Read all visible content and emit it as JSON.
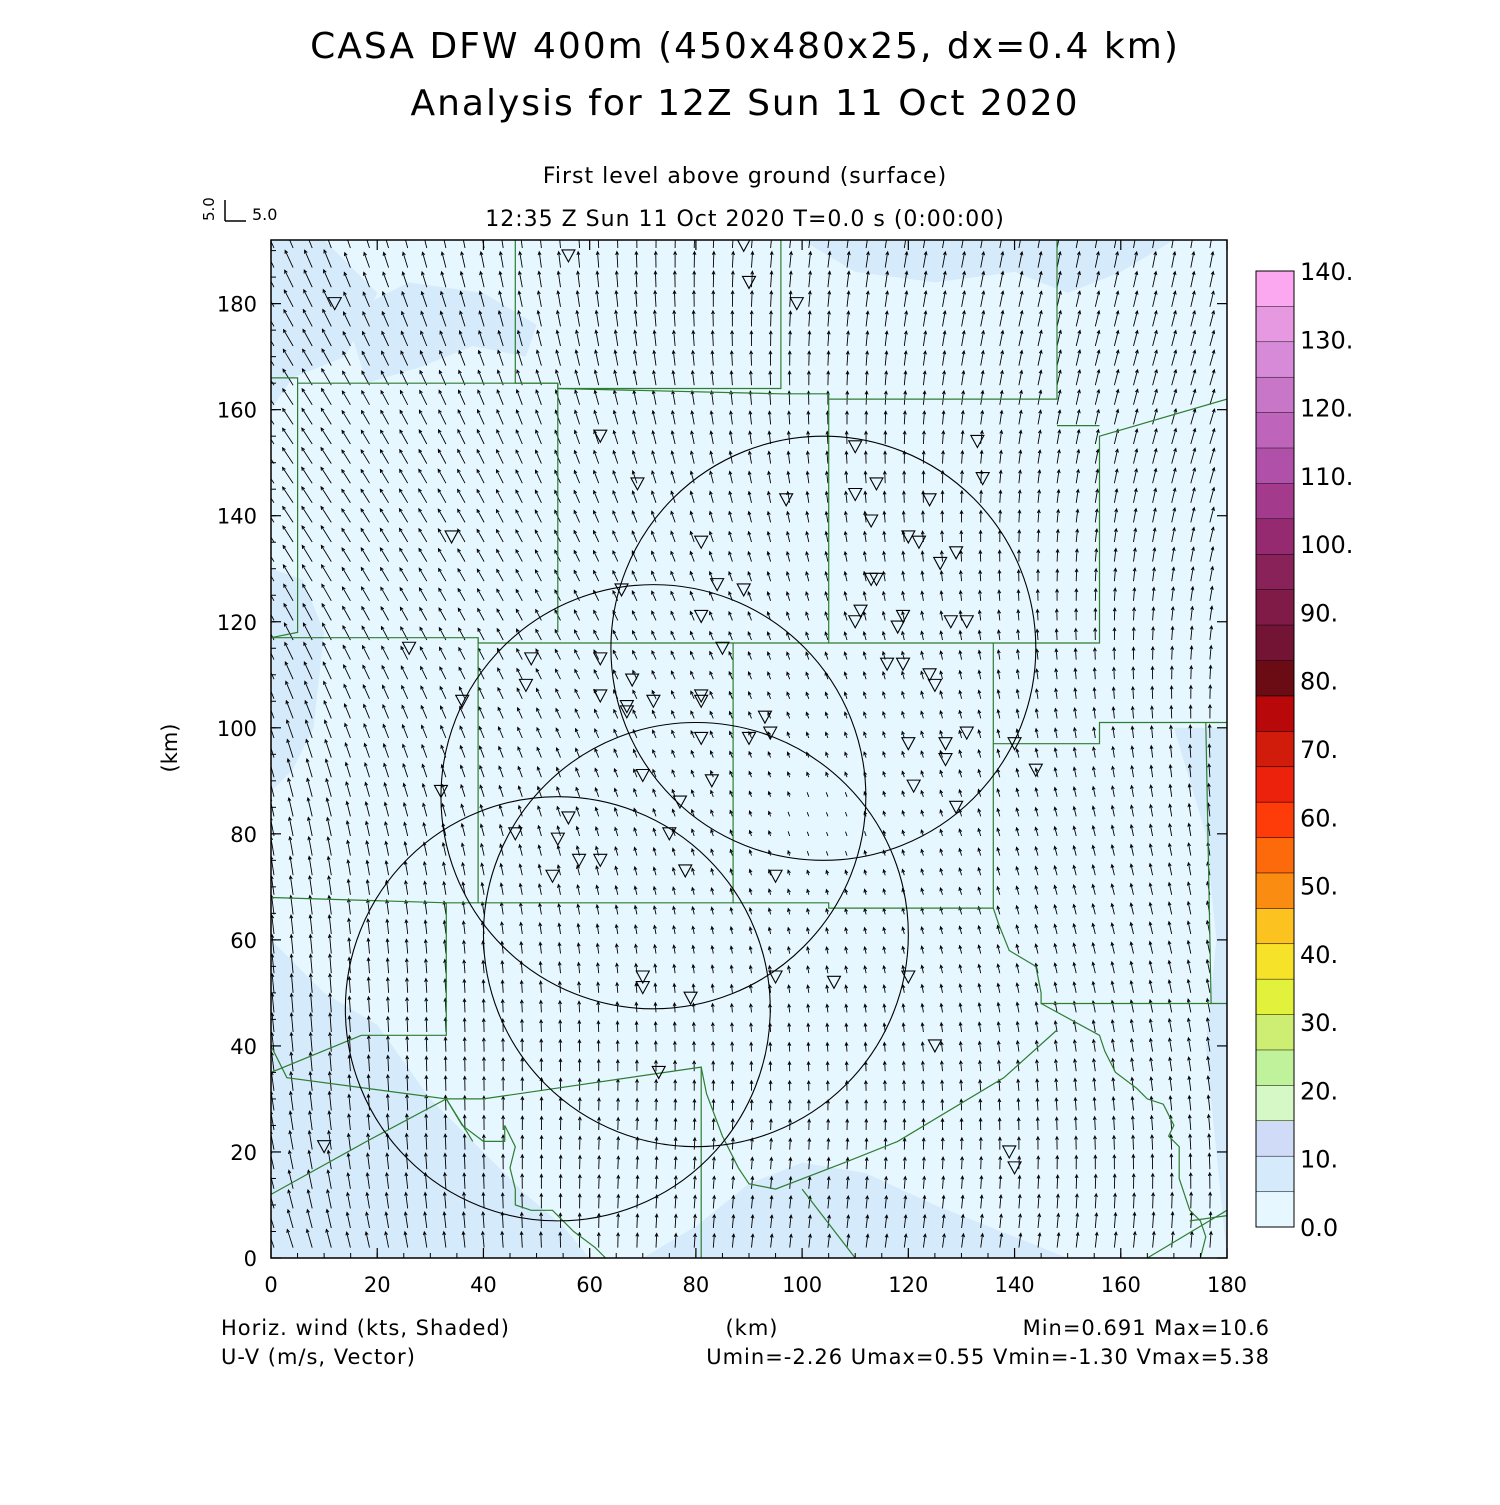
{
  "header": {
    "title_line1": "CASA DFW 400m (450x480x25, dx=0.4 km)",
    "title_line2": "Analysis for 12Z Sun 11 Oct 2020",
    "level_label": "First level above ground (surface)",
    "time_label": "12:35 Z Sun 11 Oct 2020   T=0.0 s (0:00:00)"
  },
  "vector_key": {
    "u_label": "5.0",
    "v_label": "5.0"
  },
  "axes": {
    "x_ticks": [
      "0",
      "20",
      "40",
      "60",
      "80",
      "100",
      "120",
      "140",
      "160",
      "180"
    ],
    "y_ticks": [
      "0",
      "20",
      "40",
      "60",
      "80",
      "100",
      "120",
      "140",
      "160",
      "180"
    ],
    "x_label": "(km)",
    "y_label": "(km)",
    "xlim": [
      0,
      180
    ],
    "ylim": [
      0,
      192
    ]
  },
  "colorbar": {
    "labels": [
      "0.0",
      "10.",
      "20.",
      "30.",
      "40.",
      "50.",
      "60.",
      "70.",
      "80.",
      "90.",
      "100.",
      "110.",
      "120.",
      "130.",
      "140."
    ],
    "colors": [
      "#e6f7ff",
      "#d5eafb",
      "#d0dcf7",
      "#d6f7c6",
      "#c0f29c",
      "#cdee72",
      "#e2f23c",
      "#f7e22a",
      "#fcc220",
      "#fb8c12",
      "#fd6a0c",
      "#fd3c0a",
      "#ec220c",
      "#d11c0c",
      "#b8080a",
      "#6b0c14",
      "#741434",
      "#801a46",
      "#8a225a",
      "#962a70",
      "#a43a8c",
      "#b050a8",
      "#be64ba",
      "#c876c8",
      "#d68ad8",
      "#e698e0",
      "#fca8f0"
    ]
  },
  "footer": {
    "left1": "Horiz. wind (kts, Shaded)",
    "left2": "U-V (m/s, Vector)",
    "center": "(km)",
    "right1": "Min=0.691 Max=10.6",
    "right2": "Umin=-2.26 Umax=0.55 Vmin=-1.30 Vmax=5.38"
  },
  "map_data": {
    "field_min": 0.691,
    "field_max": 10.6,
    "radar_rings": [
      {
        "cx_km": 54,
        "cy_km": 47,
        "r_km": 40
      },
      {
        "cx_km": 80,
        "cy_km": 61,
        "r_km": 40
      },
      {
        "cx_km": 72,
        "cy_km": 87,
        "r_km": 40
      },
      {
        "cx_km": 104,
        "cy_km": 115,
        "r_km": 40
      }
    ],
    "stations_km": [
      [
        56,
        189
      ],
      [
        89,
        191
      ],
      [
        90,
        184
      ],
      [
        12,
        180
      ],
      [
        99,
        180
      ],
      [
        62,
        155
      ],
      [
        69,
        146
      ],
      [
        34,
        136
      ],
      [
        110,
        153
      ],
      [
        133,
        154
      ],
      [
        134,
        147
      ],
      [
        114,
        146
      ],
      [
        110,
        144
      ],
      [
        124,
        143
      ],
      [
        97,
        143
      ],
      [
        113,
        139
      ],
      [
        120,
        136
      ],
      [
        122,
        135
      ],
      [
        81,
        135
      ],
      [
        129,
        133
      ],
      [
        126,
        131
      ],
      [
        113,
        128
      ],
      [
        114,
        128
      ],
      [
        66,
        126
      ],
      [
        84,
        127
      ],
      [
        89,
        126
      ],
      [
        81,
        121
      ],
      [
        111,
        122
      ],
      [
        110,
        120
      ],
      [
        119,
        121
      ],
      [
        118,
        119
      ],
      [
        128,
        120
      ],
      [
        131,
        120
      ],
      [
        26,
        115
      ],
      [
        85,
        115
      ],
      [
        62,
        113
      ],
      [
        49,
        113
      ],
      [
        116,
        112
      ],
      [
        119,
        112
      ],
      [
        124,
        110
      ],
      [
        48,
        108
      ],
      [
        68,
        109
      ],
      [
        125,
        108
      ],
      [
        62,
        106
      ],
      [
        36,
        105
      ],
      [
        72,
        105
      ],
      [
        81,
        106
      ],
      [
        81,
        105
      ],
      [
        67,
        104
      ],
      [
        67,
        103
      ],
      [
        93,
        102
      ],
      [
        94,
        99
      ],
      [
        90,
        98
      ],
      [
        81,
        98
      ],
      [
        120,
        97
      ],
      [
        127,
        97
      ],
      [
        131,
        99
      ],
      [
        140,
        97
      ],
      [
        127,
        94
      ],
      [
        144,
        92
      ],
      [
        32,
        88
      ],
      [
        70,
        91
      ],
      [
        83,
        90
      ],
      [
        121,
        89
      ],
      [
        77,
        86
      ],
      [
        129,
        85
      ],
      [
        46,
        80
      ],
      [
        56,
        83
      ],
      [
        75,
        80
      ],
      [
        54,
        79
      ],
      [
        58,
        75
      ],
      [
        62,
        75
      ],
      [
        78,
        73
      ],
      [
        53,
        72
      ],
      [
        95,
        72
      ],
      [
        70,
        53
      ],
      [
        70,
        51
      ],
      [
        95,
        53
      ],
      [
        106,
        52
      ],
      [
        120,
        53
      ],
      [
        79,
        49
      ],
      [
        125,
        40
      ],
      [
        73,
        35
      ],
      [
        10,
        21
      ],
      [
        139,
        20
      ],
      [
        140,
        17
      ]
    ],
    "county_lines_km": [
      [
        [
          0,
          166
        ],
        [
          5,
          166
        ],
        [
          5,
          118
        ],
        [
          0,
          117
        ]
      ],
      [
        [
          46,
          192
        ],
        [
          46,
          165
        ],
        [
          54,
          165
        ],
        [
          54,
          118
        ]
      ],
      [
        [
          5,
          165
        ],
        [
          54,
          165
        ]
      ],
      [
        [
          54,
          165
        ],
        [
          54,
          164
        ],
        [
          96,
          164
        ],
        [
          96,
          192
        ]
      ],
      [
        [
          54,
          164
        ],
        [
          96,
          163
        ],
        [
          105,
          163
        ],
        [
          105,
          162
        ],
        [
          148,
          162
        ],
        [
          148,
          192
        ]
      ],
      [
        [
          105,
          162
        ],
        [
          105,
          116
        ],
        [
          156,
          116
        ],
        [
          156,
          155
        ],
        [
          180,
          162
        ]
      ],
      [
        [
          148,
          157
        ],
        [
          156,
          157
        ]
      ],
      [
        [
          0,
          117
        ],
        [
          39,
          117
        ],
        [
          39,
          116
        ],
        [
          87,
          116
        ],
        [
          105,
          116
        ]
      ],
      [
        [
          39,
          117
        ],
        [
          39,
          67
        ],
        [
          87,
          67
        ],
        [
          87,
          116
        ]
      ],
      [
        [
          87,
          67
        ],
        [
          105,
          67
        ],
        [
          105,
          66
        ],
        [
          136,
          66
        ],
        [
          136,
          116
        ]
      ],
      [
        [
          136,
          97
        ],
        [
          156,
          97
        ],
        [
          156,
          101
        ],
        [
          176,
          101
        ],
        [
          180,
          101
        ]
      ],
      [
        [
          176,
          101
        ],
        [
          177,
          48
        ],
        [
          180,
          48
        ]
      ],
      [
        [
          0,
          68
        ],
        [
          33,
          67
        ],
        [
          39,
          67
        ]
      ],
      [
        [
          33,
          67
        ],
        [
          33,
          42
        ],
        [
          17,
          42
        ],
        [
          0,
          35
        ]
      ],
      [
        [
          0,
          40
        ],
        [
          3,
          34
        ],
        [
          33,
          30
        ],
        [
          36,
          25
        ],
        [
          40,
          22
        ],
        [
          44,
          22
        ],
        [
          44,
          25
        ],
        [
          46,
          21
        ],
        [
          45,
          17
        ],
        [
          46,
          13
        ],
        [
          46,
          10
        ],
        [
          49,
          9
        ],
        [
          53,
          9
        ],
        [
          55,
          7
        ],
        [
          57,
          5
        ],
        [
          61,
          2
        ],
        [
          63,
          0
        ]
      ],
      [
        [
          33,
          30
        ],
        [
          38,
          22
        ]
      ],
      [
        [
          0,
          12
        ],
        [
          18,
          22
        ],
        [
          33,
          30
        ]
      ],
      [
        [
          33,
          30
        ],
        [
          40,
          30
        ],
        [
          81,
          36
        ],
        [
          81,
          0
        ]
      ],
      [
        [
          81,
          36
        ],
        [
          82,
          31
        ],
        [
          85,
          23
        ],
        [
          88,
          17
        ],
        [
          90,
          14
        ],
        [
          95,
          13
        ],
        [
          108,
          18
        ],
        [
          118,
          22
        ],
        [
          138,
          34
        ],
        [
          148,
          43
        ]
      ],
      [
        [
          100,
          13
        ],
        [
          110,
          0
        ]
      ],
      [
        [
          136,
          66
        ],
        [
          137,
          63
        ],
        [
          139,
          58
        ],
        [
          144,
          55
        ],
        [
          145,
          50
        ],
        [
          145,
          48
        ],
        [
          177,
          48
        ]
      ],
      [
        [
          145,
          48
        ],
        [
          156,
          42
        ],
        [
          157,
          39
        ],
        [
          159,
          35
        ],
        [
          163,
          32
        ],
        [
          165,
          30
        ],
        [
          168,
          29
        ],
        [
          169,
          27
        ],
        [
          170,
          25
        ],
        [
          169,
          23
        ],
        [
          171,
          21
        ],
        [
          171,
          15
        ],
        [
          172,
          12
        ],
        [
          173,
          9
        ],
        [
          175,
          7
        ],
        [
          176,
          4
        ],
        [
          175,
          0
        ]
      ],
      [
        [
          165,
          0
        ],
        [
          170,
          3
        ],
        [
          180,
          9
        ]
      ],
      [
        [
          173,
          7
        ],
        [
          180,
          8
        ]
      ]
    ]
  }
}
